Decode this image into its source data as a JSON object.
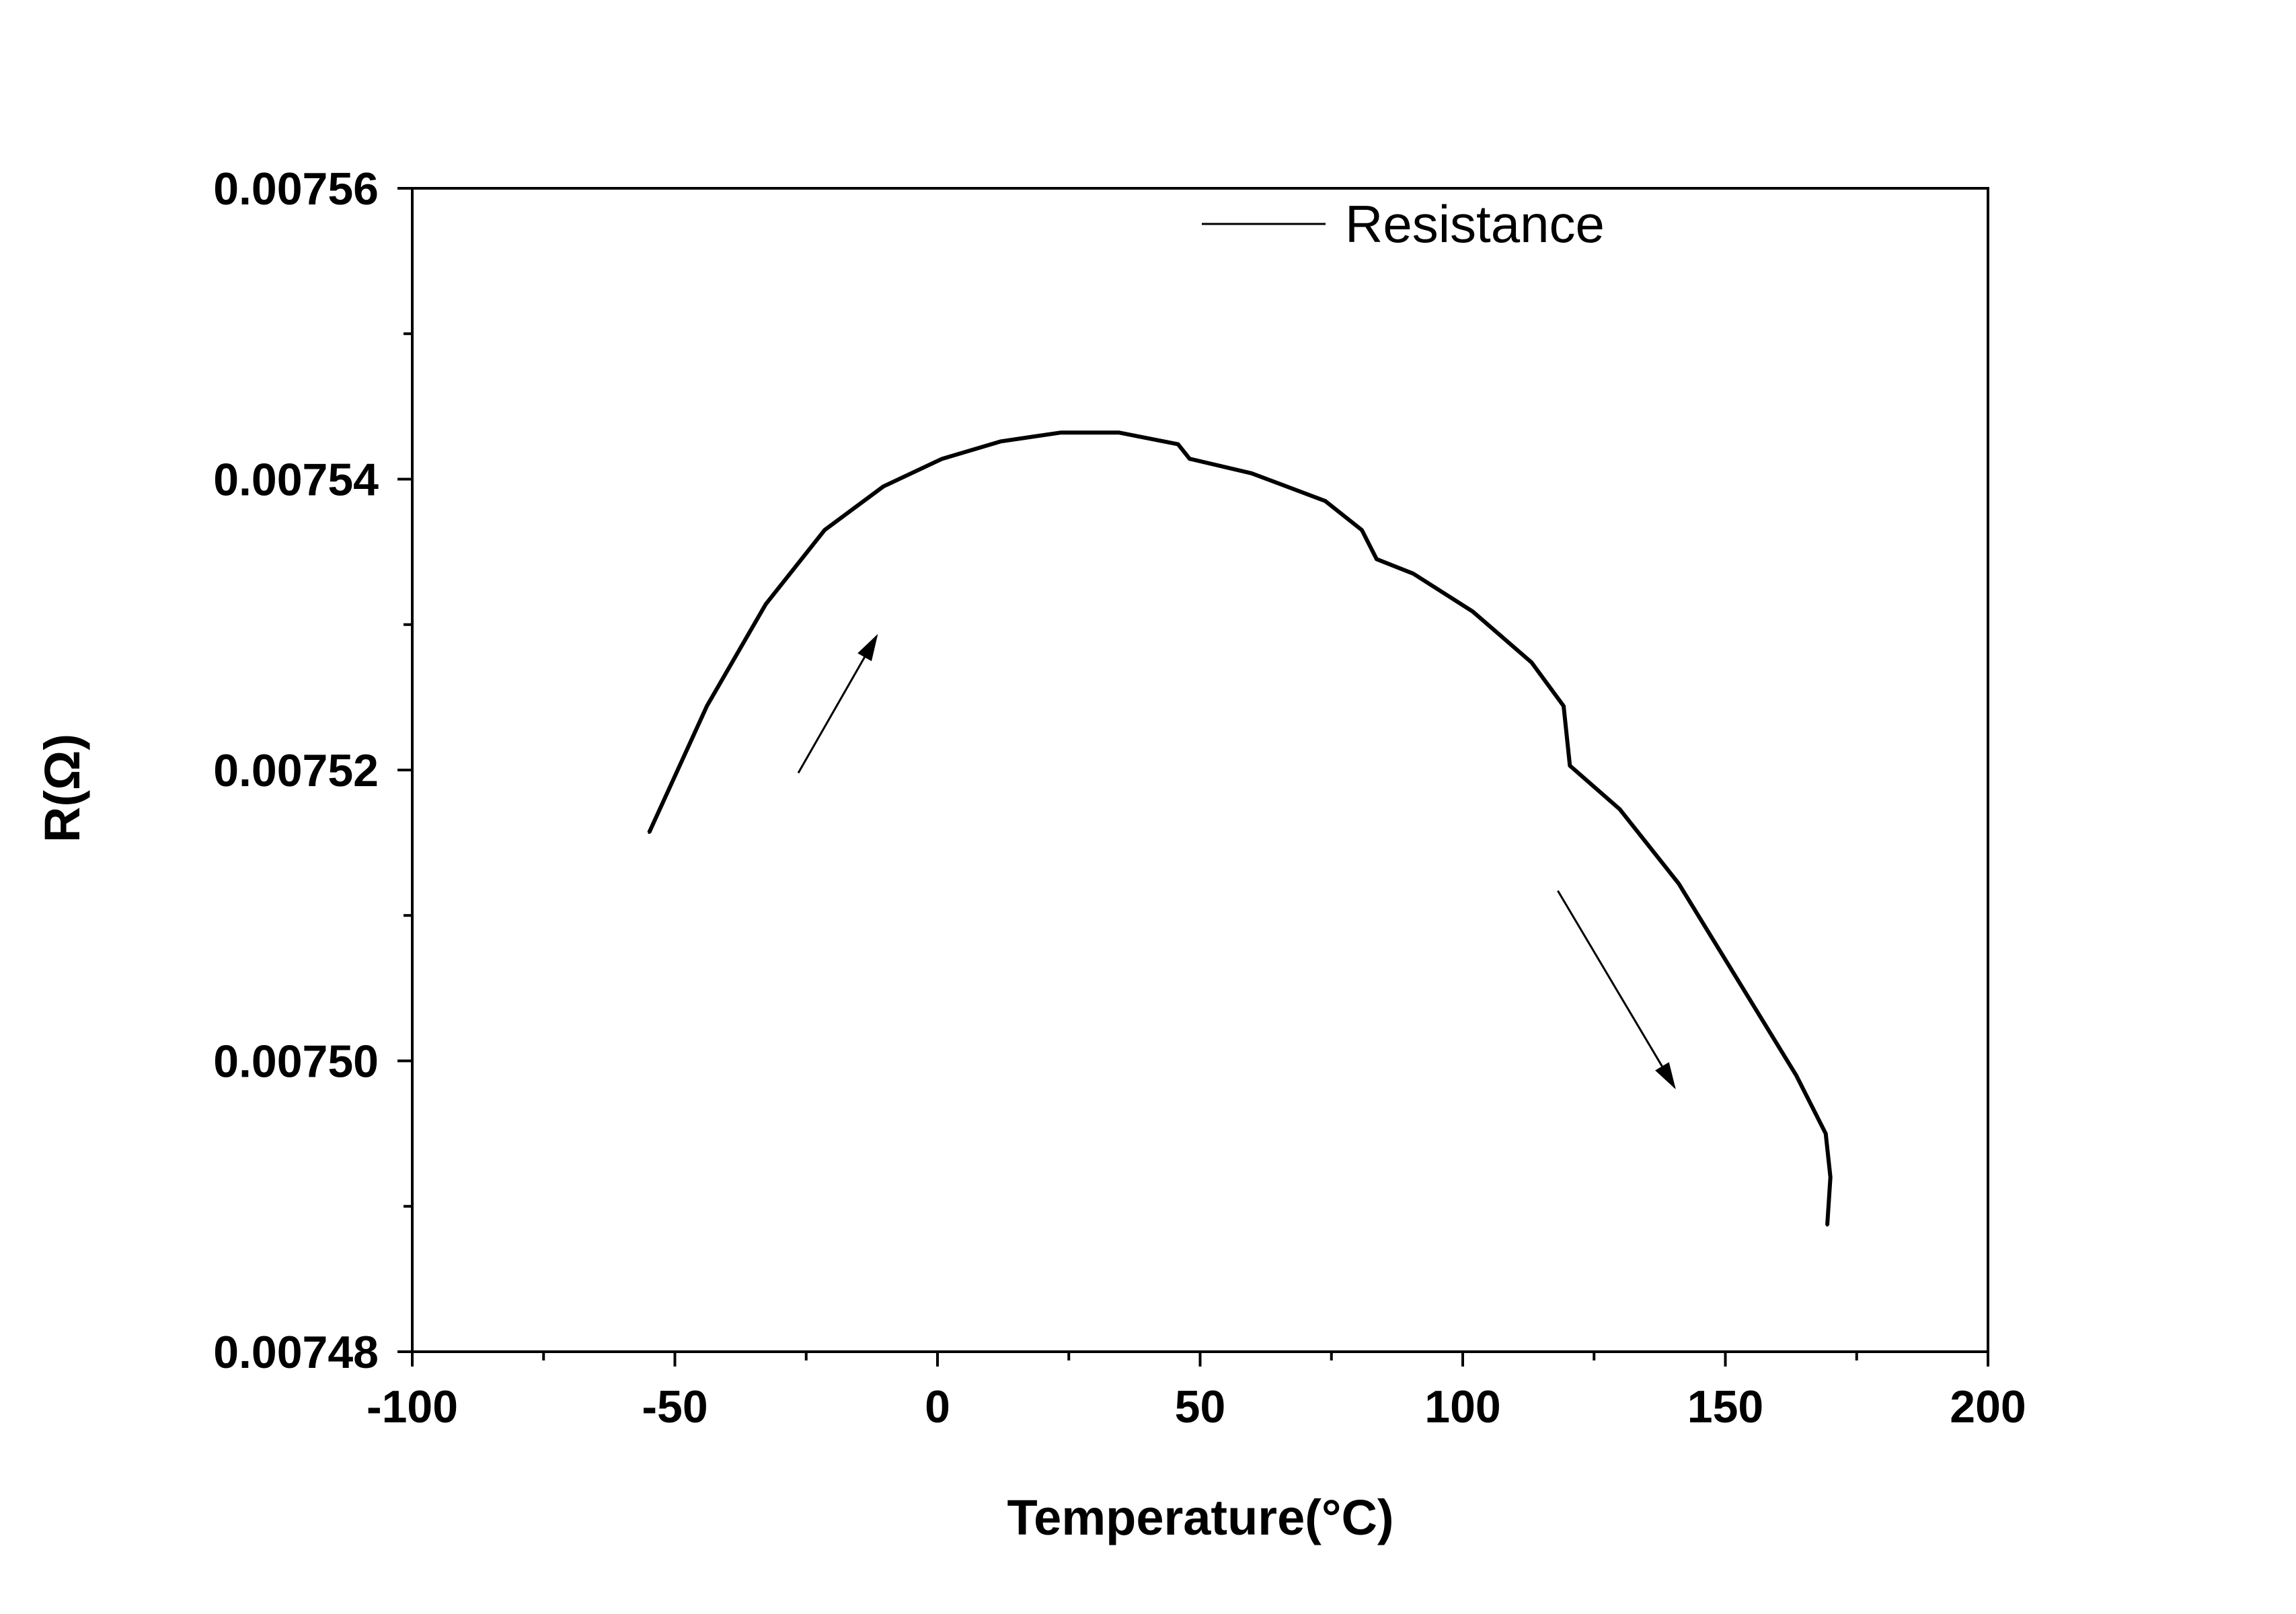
{
  "chart_data": {
    "type": "line",
    "title": "",
    "xlabel": "Temperature(°C)",
    "ylabel": "R(Ω)",
    "xlim": [
      -100,
      200
    ],
    "ylim": [
      0.00748,
      0.00756
    ],
    "x_ticks": [
      "-100",
      "-50",
      "0",
      "50",
      "100",
      "150",
      "200"
    ],
    "y_ticks": [
      "0.00748",
      "0.00750",
      "0.00752",
      "0.00754",
      "0.00756"
    ],
    "grid": false,
    "legend_position": "top-right",
    "line_color": "#000000",
    "series": [
      {
        "name": "Resistance",
        "x": [
          -54.9,
          -43.9,
          -32.7,
          -21.5,
          -10.3,
          0.9,
          12.1,
          23.4,
          34.6,
          45.8,
          48.0,
          59.8,
          73.8,
          80.8,
          83.6,
          90.6,
          101.9,
          113.1,
          119.2,
          120.4,
          129.9,
          141.1,
          152.3,
          163.5,
          169.1,
          170.0,
          169.4
        ],
        "y": [
          0.0075157,
          0.0075244,
          0.0075314,
          0.0075365,
          0.0075395,
          0.0075414,
          0.0075426,
          0.0075432,
          0.0075432,
          0.0075424,
          0.0075414,
          0.0075404,
          0.0075385,
          0.0075365,
          0.0075345,
          0.0075335,
          0.0075309,
          0.0075274,
          0.0075244,
          0.0075203,
          0.0075173,
          0.0075122,
          0.0075056,
          0.007499,
          0.007495,
          0.007492,
          0.0074887
        ]
      }
    ],
    "annotations": [
      {
        "type": "arrow",
        "direction": "up-right (heating)"
      },
      {
        "type": "arrow",
        "direction": "down-right"
      }
    ]
  }
}
